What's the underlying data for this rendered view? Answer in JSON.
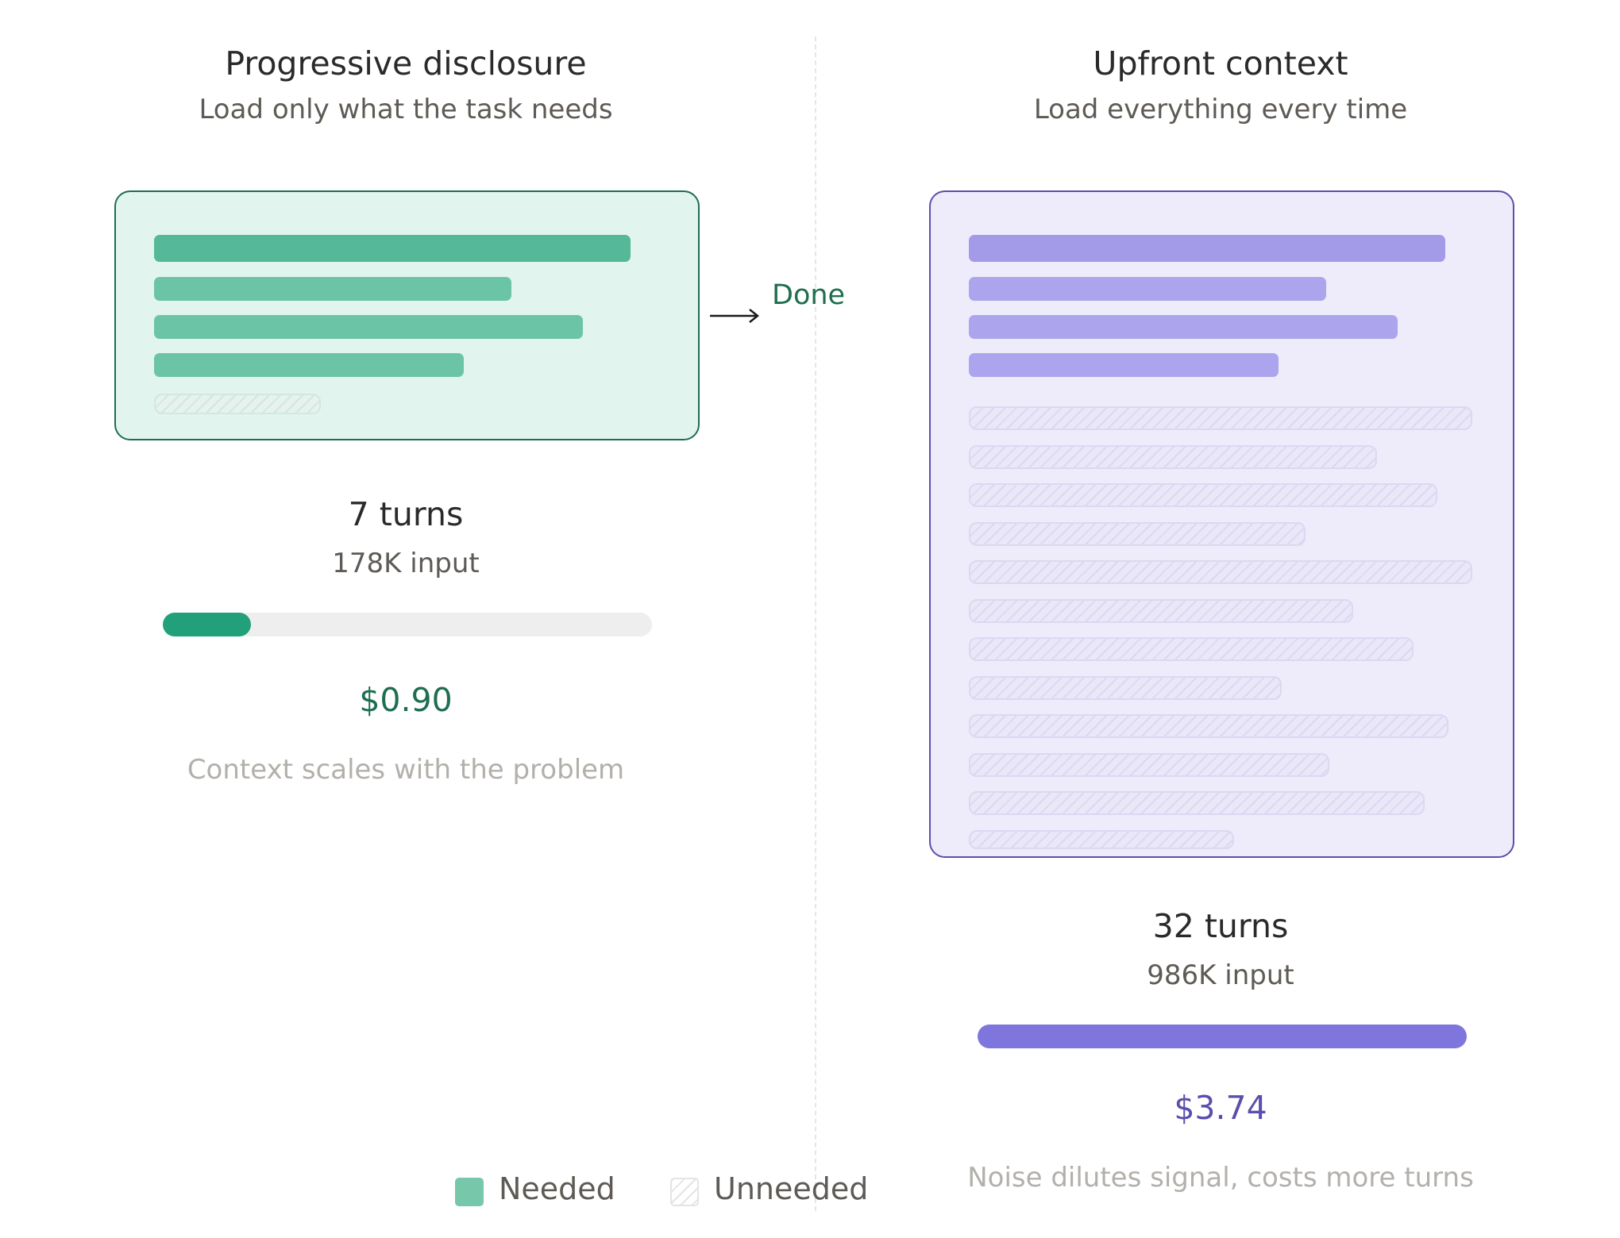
{
  "left": {
    "title": "Progressive disclosure",
    "subtitle": "Load only what the task needs",
    "turns": "7 turns",
    "input": "178K input",
    "cost": "$0.90",
    "caption": "Context scales with the problem",
    "input_fraction": 0.18,
    "done_label": "Done",
    "needed_rows": 4,
    "unneeded_rows": 1,
    "colors": {
      "panel_bg": "#e1f4ee",
      "panel_border": "#1e6e50",
      "bar_strong": "#55b898",
      "bar": "#6cc4a6",
      "progress": "#21a07a",
      "cost": "#1e6e50",
      "hatch_bg": "#e5f2ee",
      "hatch_line": "#d3e6df"
    }
  },
  "right": {
    "title": "Upfront context",
    "subtitle": "Load everything every time",
    "turns": "32 turns",
    "input": "986K input",
    "cost": "$3.74",
    "caption": "Noise dilutes signal, costs more turns",
    "input_fraction": 1.0,
    "needed_rows": 4,
    "unneeded_rows": 12,
    "colors": {
      "panel_bg": "#eeecfb",
      "panel_border": "#5a4fad",
      "bar_strong": "#a39ae8",
      "bar": "#aca4ec",
      "progress": "#7f76dd",
      "cost": "#5a4fad",
      "hatch_bg": "#e9e7f8",
      "hatch_line": "#dcd8f1"
    }
  },
  "legend": {
    "needed_label": "Needed",
    "unneeded_label": "Unneeded",
    "needed_color": "#77c8ab"
  }
}
